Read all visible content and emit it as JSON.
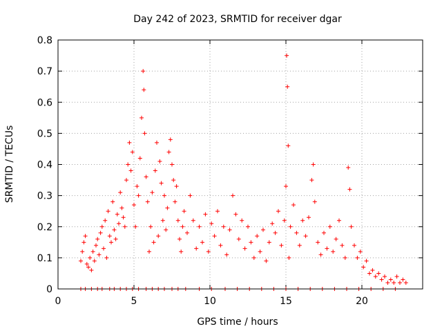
{
  "chart_data": {
    "type": "scatter",
    "title": "Day 242 of 2023, SRMTID for receiver dgar",
    "xlabel": "GPS time / hours",
    "ylabel": "SRMTID / TECUs",
    "xlim": [
      0,
      24
    ],
    "ylim": [
      0,
      0.8
    ],
    "xticks": [
      0,
      5,
      10,
      15,
      20
    ],
    "yticks": [
      0,
      0.1,
      0.2,
      0.3,
      0.4,
      0.5,
      0.6,
      0.7,
      0.8
    ],
    "xtick_labels": [
      "0",
      "5",
      "10",
      "15",
      "20"
    ],
    "ytick_labels": [
      "0",
      "0.1",
      "0.2",
      "0.3",
      "0.4",
      "0.5",
      "0.6",
      "0.7",
      "0.8"
    ],
    "grid": true,
    "marker": "+",
    "color": "#ff0000",
    "series": [
      {
        "name": "SRMTID",
        "points": [
          [
            1.5,
            0.09
          ],
          [
            1.6,
            0.12
          ],
          [
            1.7,
            0.15
          ],
          [
            1.8,
            0.17
          ],
          [
            1.9,
            0.08
          ],
          [
            2.0,
            0.07
          ],
          [
            2.1,
            0.1
          ],
          [
            2.2,
            0.06
          ],
          [
            2.3,
            0.12
          ],
          [
            2.4,
            0.09
          ],
          [
            2.5,
            0.14
          ],
          [
            2.6,
            0.16
          ],
          [
            2.7,
            0.11
          ],
          [
            2.8,
            0.18
          ],
          [
            2.9,
            0.2
          ],
          [
            3.0,
            0.13
          ],
          [
            3.1,
            0.22
          ],
          [
            3.2,
            0.1
          ],
          [
            3.3,
            0.25
          ],
          [
            3.4,
            0.17
          ],
          [
            3.5,
            0.15
          ],
          [
            3.6,
            0.28
          ],
          [
            3.7,
            0.19
          ],
          [
            3.8,
            0.16
          ],
          [
            3.9,
            0.24
          ],
          [
            4.0,
            0.21
          ],
          [
            4.1,
            0.31
          ],
          [
            4.2,
            0.26
          ],
          [
            4.3,
            0.23
          ],
          [
            4.4,
            0.2
          ],
          [
            4.5,
            0.35
          ],
          [
            4.6,
            0.4
          ],
          [
            4.7,
            0.47
          ],
          [
            4.8,
            0.38
          ],
          [
            4.9,
            0.44
          ],
          [
            5.0,
            0.27
          ],
          [
            5.1,
            0.2
          ],
          [
            5.2,
            0.33
          ],
          [
            5.3,
            0.3
          ],
          [
            5.4,
            0.42
          ],
          [
            5.5,
            0.55
          ],
          [
            5.6,
            0.7
          ],
          [
            5.65,
            0.64
          ],
          [
            5.7,
            0.5
          ],
          [
            5.8,
            0.36
          ],
          [
            5.9,
            0.28
          ],
          [
            6.0,
            0.12
          ],
          [
            6.1,
            0.2
          ],
          [
            6.2,
            0.31
          ],
          [
            6.3,
            0.15
          ],
          [
            6.4,
            0.38
          ],
          [
            6.5,
            0.47
          ],
          [
            6.6,
            0.17
          ],
          [
            6.7,
            0.41
          ],
          [
            6.8,
            0.34
          ],
          [
            6.9,
            0.22
          ],
          [
            7.0,
            0.3
          ],
          [
            7.1,
            0.19
          ],
          [
            7.2,
            0.26
          ],
          [
            7.3,
            0.44
          ],
          [
            7.4,
            0.48
          ],
          [
            7.5,
            0.4
          ],
          [
            7.6,
            0.35
          ],
          [
            7.7,
            0.28
          ],
          [
            7.8,
            0.33
          ],
          [
            7.9,
            0.22
          ],
          [
            8.0,
            0.16
          ],
          [
            8.1,
            0.12
          ],
          [
            8.2,
            0.2
          ],
          [
            8.3,
            0.25
          ],
          [
            8.5,
            0.18
          ],
          [
            8.7,
            0.3
          ],
          [
            8.9,
            0.22
          ],
          [
            9.1,
            0.13
          ],
          [
            9.3,
            0.2
          ],
          [
            9.5,
            0.15
          ],
          [
            9.7,
            0.24
          ],
          [
            9.9,
            0.12
          ],
          [
            10.1,
            0.21
          ],
          [
            10.3,
            0.17
          ],
          [
            10.5,
            0.25
          ],
          [
            10.7,
            0.14
          ],
          [
            10.9,
            0.2
          ],
          [
            11.1,
            0.11
          ],
          [
            11.3,
            0.19
          ],
          [
            11.5,
            0.3
          ],
          [
            11.7,
            0.24
          ],
          [
            11.9,
            0.16
          ],
          [
            12.1,
            0.22
          ],
          [
            12.3,
            0.13
          ],
          [
            12.5,
            0.2
          ],
          [
            12.7,
            0.15
          ],
          [
            12.9,
            0.1
          ],
          [
            13.1,
            0.17
          ],
          [
            13.3,
            0.12
          ],
          [
            13.5,
            0.19
          ],
          [
            13.7,
            0.09
          ],
          [
            13.9,
            0.15
          ],
          [
            14.1,
            0.21
          ],
          [
            14.3,
            0.18
          ],
          [
            14.5,
            0.25
          ],
          [
            14.7,
            0.14
          ],
          [
            14.9,
            0.22
          ],
          [
            15.0,
            0.33
          ],
          [
            15.05,
            0.75
          ],
          [
            15.1,
            0.65
          ],
          [
            15.15,
            0.46
          ],
          [
            15.2,
            0.1
          ],
          [
            15.3,
            0.2
          ],
          [
            15.5,
            0.27
          ],
          [
            15.7,
            0.18
          ],
          [
            15.9,
            0.14
          ],
          [
            16.1,
            0.22
          ],
          [
            16.3,
            0.17
          ],
          [
            16.5,
            0.23
          ],
          [
            16.7,
            0.35
          ],
          [
            16.8,
            0.4
          ],
          [
            16.9,
            0.28
          ],
          [
            17.1,
            0.15
          ],
          [
            17.3,
            0.11
          ],
          [
            17.5,
            0.18
          ],
          [
            17.7,
            0.13
          ],
          [
            17.9,
            0.2
          ],
          [
            18.1,
            0.12
          ],
          [
            18.3,
            0.16
          ],
          [
            18.5,
            0.22
          ],
          [
            18.7,
            0.14
          ],
          [
            18.9,
            0.1
          ],
          [
            19.1,
            0.39
          ],
          [
            19.2,
            0.32
          ],
          [
            19.3,
            0.2
          ],
          [
            19.5,
            0.14
          ],
          [
            19.7,
            0.1
          ],
          [
            19.9,
            0.12
          ],
          [
            20.1,
            0.07
          ],
          [
            20.3,
            0.09
          ],
          [
            20.5,
            0.05
          ],
          [
            20.7,
            0.06
          ],
          [
            20.9,
            0.04
          ],
          [
            21.1,
            0.05
          ],
          [
            21.3,
            0.03
          ],
          [
            21.5,
            0.04
          ],
          [
            21.7,
            0.02
          ],
          [
            21.9,
            0.03
          ],
          [
            22.1,
            0.02
          ],
          [
            22.3,
            0.04
          ],
          [
            22.5,
            0.02
          ],
          [
            22.7,
            0.03
          ],
          [
            22.9,
            0.02
          ],
          [
            1.5,
            0.0
          ],
          [
            1.8,
            0.0
          ],
          [
            2.2,
            0.0
          ],
          [
            2.6,
            0.0
          ],
          [
            2.9,
            0.0
          ],
          [
            3.4,
            0.0
          ],
          [
            3.7,
            0.0
          ],
          [
            4.1,
            0.0
          ],
          [
            4.5,
            0.0
          ],
          [
            4.9,
            0.0
          ],
          [
            5.3,
            0.0
          ],
          [
            5.8,
            0.0
          ],
          [
            6.2,
            0.0
          ],
          [
            6.6,
            0.0
          ],
          [
            7.0,
            0.0
          ],
          [
            7.5,
            0.0
          ],
          [
            7.9,
            0.0
          ],
          [
            8.4,
            0.0
          ],
          [
            9.3,
            0.0
          ],
          [
            10.1,
            0.0
          ],
          [
            11.0,
            0.0
          ],
          [
            11.8,
            0.0
          ],
          [
            12.6,
            0.0
          ],
          [
            13.4,
            0.0
          ],
          [
            14.2,
            0.0
          ],
          [
            15.0,
            0.0
          ],
          [
            15.8,
            0.0
          ],
          [
            16.6,
            0.0
          ],
          [
            17.4,
            0.0
          ],
          [
            18.2,
            0.0
          ],
          [
            19.0,
            0.0
          ],
          [
            19.8,
            0.0
          ],
          [
            20.6,
            0.0
          ],
          [
            21.4,
            0.0
          ],
          [
            22.2,
            0.0
          ]
        ]
      }
    ]
  }
}
